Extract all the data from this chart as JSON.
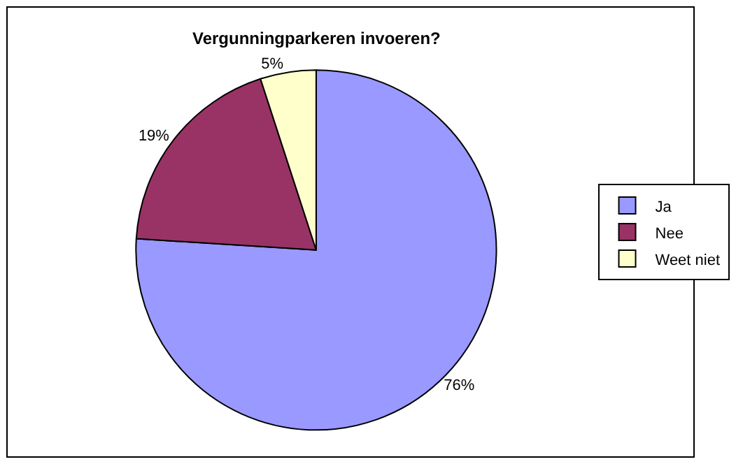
{
  "chart_data": {
    "type": "pie",
    "title": "Vergunningparkeren invoeren?",
    "categories": [
      "Ja",
      "Nee",
      "Weet niet"
    ],
    "values": [
      76,
      19,
      5
    ],
    "value_labels": [
      "76%",
      "19%",
      "5%"
    ],
    "colors": [
      "#9999ff",
      "#993366",
      "#ffffcc"
    ],
    "legend": "right"
  }
}
